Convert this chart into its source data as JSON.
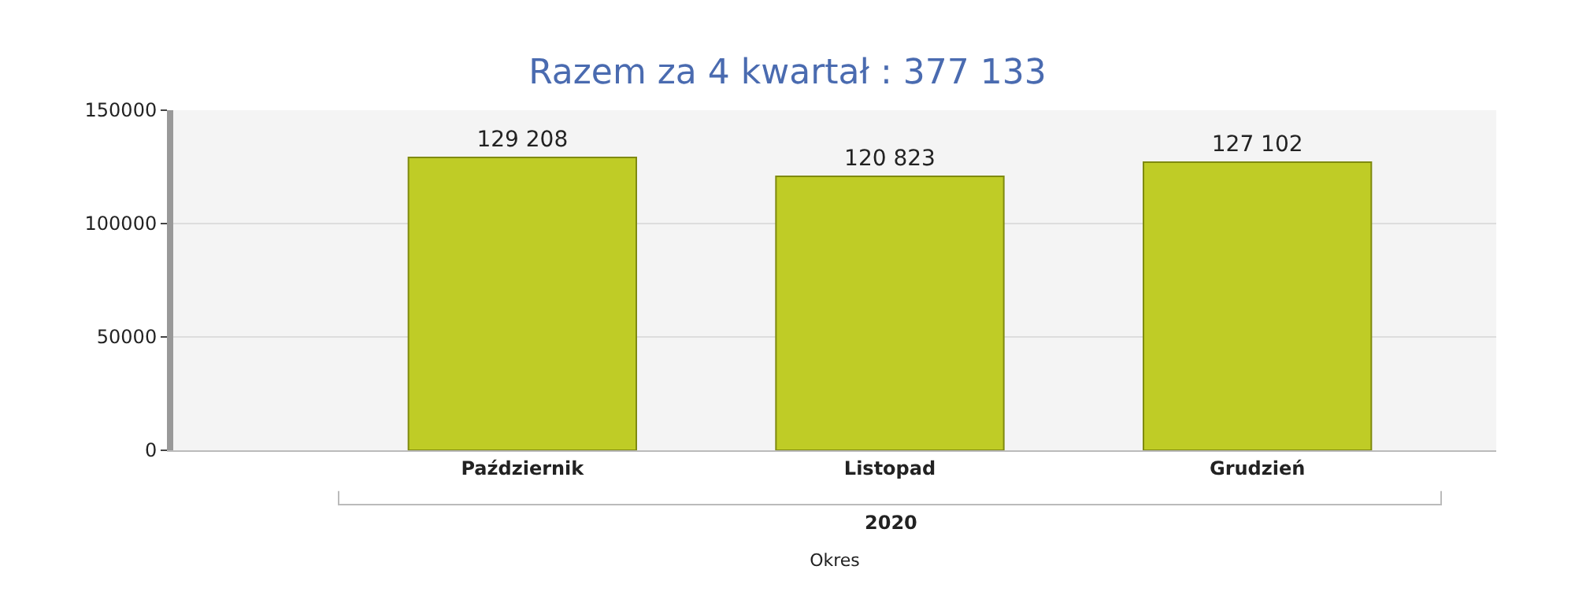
{
  "chart_data": {
    "type": "bar",
    "title": "Razem za 4 kwartał : 377 133",
    "xlabel": "Okres",
    "categories": [
      "Październik",
      "Listopad",
      "Grudzień"
    ],
    "values": [
      129208,
      120823,
      127102
    ],
    "value_labels": [
      "129 208",
      "120 823",
      "127 102"
    ],
    "color": "#bfcc26",
    "ylim": [
      0,
      150000
    ],
    "yticks": [
      0,
      50000,
      100000,
      150000
    ],
    "grid": "y",
    "legend": false,
    "annotations": [
      "2020"
    ]
  }
}
